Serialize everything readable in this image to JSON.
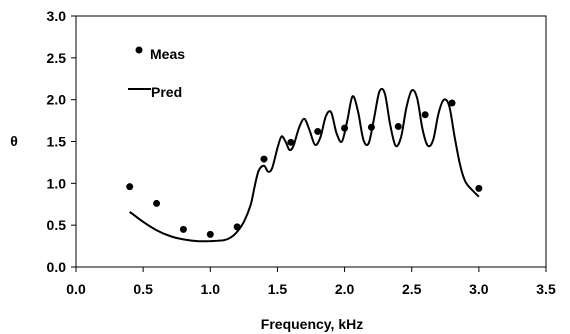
{
  "chart_data": {
    "type": "line",
    "title": "",
    "xlabel": "Frequency, kHz",
    "ylabel": "θ",
    "xlim": [
      0.0,
      3.5
    ],
    "ylim": [
      0.0,
      3.0
    ],
    "xticks": [
      "0.0",
      "0.5",
      "1.0",
      "1.5",
      "2.0",
      "2.5",
      "3.0",
      "3.5"
    ],
    "yticks": [
      "0.0",
      "0.5",
      "1.0",
      "1.5",
      "2.0",
      "2.5",
      "3.0"
    ],
    "grid": false,
    "legend_position": "top-left",
    "series": [
      {
        "name": "Meas",
        "style": "markers",
        "color": "#000000",
        "x": [
          0.4,
          0.6,
          0.8,
          1.0,
          1.2,
          1.4,
          1.6,
          1.8,
          2.0,
          2.2,
          2.4,
          2.6,
          2.8,
          3.0
        ],
        "y": [
          0.96,
          0.76,
          0.45,
          0.39,
          0.48,
          1.29,
          1.49,
          1.62,
          1.66,
          1.67,
          1.68,
          1.82,
          1.96,
          0.94
        ]
      },
      {
        "name": "Pred",
        "style": "line",
        "color": "#000000",
        "x": [
          0.4,
          0.5,
          0.6,
          0.7,
          0.8,
          0.9,
          1.0,
          1.1,
          1.15,
          1.2,
          1.25,
          1.3,
          1.33,
          1.36,
          1.4,
          1.43,
          1.46,
          1.5,
          1.53,
          1.56,
          1.59,
          1.62,
          1.66,
          1.7,
          1.74,
          1.78,
          1.82,
          1.86,
          1.9,
          1.94,
          1.98,
          2.02,
          2.06,
          2.1,
          2.14,
          2.18,
          2.22,
          2.26,
          2.3,
          2.34,
          2.38,
          2.42,
          2.46,
          2.5,
          2.54,
          2.58,
          2.62,
          2.66,
          2.7,
          2.74,
          2.78,
          2.82,
          2.86,
          2.9,
          2.95,
          3.0
        ],
        "y": [
          0.66,
          0.54,
          0.44,
          0.37,
          0.33,
          0.31,
          0.31,
          0.32,
          0.35,
          0.42,
          0.54,
          0.74,
          0.96,
          1.15,
          1.21,
          1.14,
          1.18,
          1.42,
          1.56,
          1.5,
          1.4,
          1.45,
          1.66,
          1.77,
          1.63,
          1.46,
          1.55,
          1.8,
          1.85,
          1.6,
          1.5,
          1.75,
          2.04,
          1.86,
          1.52,
          1.48,
          1.78,
          2.1,
          2.07,
          1.7,
          1.45,
          1.55,
          1.9,
          2.11,
          2.02,
          1.65,
          1.45,
          1.52,
          1.84,
          2.0,
          1.92,
          1.55,
          1.22,
          1.02,
          0.92,
          0.84
        ]
      }
    ]
  }
}
